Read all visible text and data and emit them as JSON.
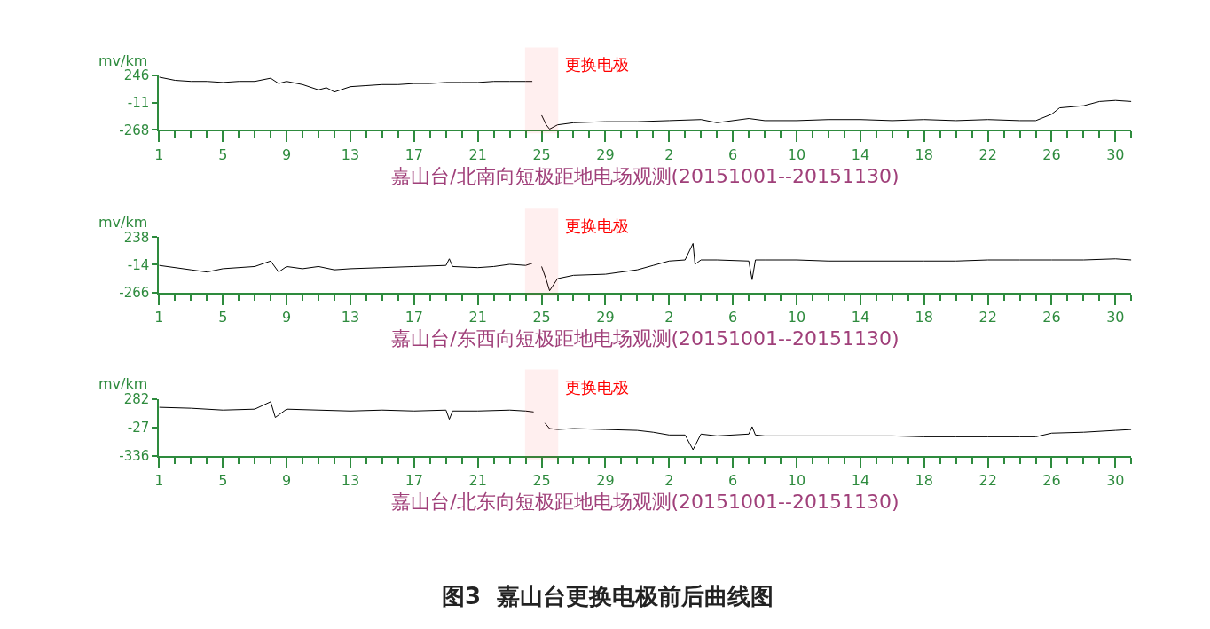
{
  "chart_data": [
    {
      "type": "line",
      "ylabel": "mv/km",
      "xlabel": "嘉山台/北南向短极距地电场观测(20151001--20151130)",
      "x": [
        "2015-10-01",
        "2015-10-02",
        "2015-10-03",
        "2015-10-04",
        "2015-10-05",
        "2015-10-06",
        "2015-10-07",
        "2015-10-08",
        "2015-10-08T12:00",
        "2015-10-09",
        "2015-10-10",
        "2015-10-11",
        "2015-10-11T12:00",
        "2015-10-12",
        "2015-10-13",
        "2015-10-14",
        "2015-10-15",
        "2015-10-16",
        "2015-10-17",
        "2015-10-18",
        "2015-10-19",
        "2015-10-20",
        "2015-10-21",
        "2015-10-22",
        "2015-10-23",
        "2015-10-24",
        "2015-10-24T10:00",
        "2015-10-24T17:00",
        "2015-10-25",
        "2015-10-25T07:00",
        "2015-10-25T12:00",
        "2015-10-26",
        "2015-10-27",
        "2015-10-29",
        "2015-10-31",
        "2015-11-02",
        "2015-11-04",
        "2015-11-05",
        "2015-11-07",
        "2015-11-08",
        "2015-11-10",
        "2015-11-12",
        "2015-11-14",
        "2015-11-16",
        "2015-11-18",
        "2015-11-20",
        "2015-11-22",
        "2015-11-24",
        "2015-11-25",
        "2015-11-26",
        "2015-11-26T12:00",
        "2015-11-28",
        "2015-11-29",
        "2015-11-30",
        "2015-12-01"
      ],
      "series": [
        {
          "color": "#000000",
          "values": [
            230,
            200,
            190,
            190,
            180,
            190,
            190,
            220,
            170,
            190,
            160,
            110,
            130,
            90,
            140,
            150,
            160,
            160,
            170,
            170,
            180,
            180,
            180,
            190,
            190,
            190,
            190,
            null,
            -130,
            -220,
            -260,
            -220,
            -200,
            -190,
            -190,
            -180,
            -170,
            -200,
            -160,
            -180,
            -180,
            -170,
            -170,
            -180,
            -170,
            -180,
            -170,
            -180,
            -180,
            -120,
            -60,
            -40,
            0,
            10,
            0
          ]
        }
      ],
      "xlim": [
        "2015-10-01",
        "2015-12-01"
      ],
      "xticks": [
        {
          "value": "2015-10-01",
          "label": "1"
        },
        {
          "value": "2015-10-05",
          "label": "5"
        },
        {
          "value": "2015-10-09",
          "label": "9"
        },
        {
          "value": "2015-10-13",
          "label": "13"
        },
        {
          "value": "2015-10-17",
          "label": "17"
        },
        {
          "value": "2015-10-21",
          "label": "21"
        },
        {
          "value": "2015-10-25",
          "label": "25"
        },
        {
          "value": "2015-10-29",
          "label": "29"
        },
        {
          "value": "2015-11-02",
          "label": "2"
        },
        {
          "value": "2015-11-06",
          "label": "6"
        },
        {
          "value": "2015-11-10",
          "label": "10"
        },
        {
          "value": "2015-11-14",
          "label": "14"
        },
        {
          "value": "2015-11-18",
          "label": "18"
        },
        {
          "value": "2015-11-22",
          "label": "22"
        },
        {
          "value": "2015-11-26",
          "label": "26"
        },
        {
          "value": "2015-11-30",
          "label": "30"
        }
      ],
      "ylim": [
        -268,
        246
      ],
      "yticks": [
        -268,
        -11,
        246
      ],
      "bands": [
        {
          "axis": "x",
          "from": "2015-10-24",
          "to": "2015-10-26",
          "label": "更换电极",
          "color": "#ff0000"
        }
      ],
      "marker": "none",
      "line_style": "solid"
    },
    {
      "type": "line",
      "ylabel": "mv/km",
      "xlabel": "嘉山台/东西向短极距地电场观测(20151001--20151130)",
      "x": [
        "2015-10-01",
        "2015-10-03",
        "2015-10-04",
        "2015-10-05",
        "2015-10-07",
        "2015-10-08",
        "2015-10-08T12:00",
        "2015-10-09",
        "2015-10-10",
        "2015-10-11",
        "2015-10-12",
        "2015-10-13",
        "2015-10-15",
        "2015-10-17",
        "2015-10-19",
        "2015-10-19T05:00",
        "2015-10-19T10:00",
        "2015-10-21",
        "2015-10-22",
        "2015-10-23",
        "2015-10-24",
        "2015-10-24T10:00",
        "2015-10-24T17:00",
        "2015-10-25",
        "2015-10-25T07:00",
        "2015-10-25T12:00",
        "2015-10-26",
        "2015-10-27",
        "2015-10-29",
        "2015-10-31",
        "2015-11-01",
        "2015-11-02",
        "2015-11-03",
        "2015-11-03T12:00",
        "2015-11-03T15:00",
        "2015-11-04",
        "2015-11-05",
        "2015-11-07",
        "2015-11-07T05:00",
        "2015-11-07T10:00",
        "2015-11-08",
        "2015-11-10",
        "2015-11-12",
        "2015-11-14",
        "2015-11-16",
        "2015-11-18",
        "2015-11-20",
        "2015-11-22",
        "2015-11-24",
        "2015-11-26",
        "2015-11-28",
        "2015-11-30",
        "2015-12-01"
      ],
      "series": [
        {
          "color": "#000000",
          "values": [
            -20,
            -60,
            -80,
            -50,
            -30,
            20,
            -80,
            -30,
            -50,
            -30,
            -60,
            -50,
            -40,
            -30,
            -20,
            40,
            -30,
            -40,
            -30,
            -10,
            -20,
            0,
            null,
            -30,
            -150,
            -250,
            -140,
            -110,
            -100,
            -60,
            -20,
            20,
            30,
            180,
            -10,
            30,
            30,
            20,
            -150,
            30,
            30,
            30,
            20,
            20,
            20,
            20,
            20,
            30,
            30,
            30,
            30,
            40,
            30
          ]
        }
      ],
      "xlim": [
        "2015-10-01",
        "2015-12-01"
      ],
      "xticks": [
        {
          "value": "2015-10-01",
          "label": "1"
        },
        {
          "value": "2015-10-05",
          "label": "5"
        },
        {
          "value": "2015-10-09",
          "label": "9"
        },
        {
          "value": "2015-10-13",
          "label": "13"
        },
        {
          "value": "2015-10-17",
          "label": "17"
        },
        {
          "value": "2015-10-21",
          "label": "21"
        },
        {
          "value": "2015-10-25",
          "label": "25"
        },
        {
          "value": "2015-10-29",
          "label": "29"
        },
        {
          "value": "2015-11-02",
          "label": "2"
        },
        {
          "value": "2015-11-06",
          "label": "6"
        },
        {
          "value": "2015-11-10",
          "label": "10"
        },
        {
          "value": "2015-11-14",
          "label": "14"
        },
        {
          "value": "2015-11-18",
          "label": "18"
        },
        {
          "value": "2015-11-22",
          "label": "22"
        },
        {
          "value": "2015-11-26",
          "label": "26"
        },
        {
          "value": "2015-11-30",
          "label": "30"
        }
      ],
      "ylim": [
        -266,
        238
      ],
      "yticks": [
        -266,
        -14,
        238
      ],
      "bands": [
        {
          "axis": "x",
          "from": "2015-10-24",
          "to": "2015-10-26",
          "label": "更换电极",
          "color": "#ff0000"
        }
      ],
      "marker": "none",
      "line_style": "solid"
    },
    {
      "type": "line",
      "ylabel": "mv/km",
      "xlabel": "嘉山台/北东向短极距地电场观测(20151001--20151130)",
      "x": [
        "2015-10-01",
        "2015-10-03",
        "2015-10-05",
        "2015-10-07",
        "2015-10-08",
        "2015-10-08T07:00",
        "2015-10-09",
        "2015-10-11",
        "2015-10-13",
        "2015-10-15",
        "2015-10-17",
        "2015-10-19",
        "2015-10-19T05:00",
        "2015-10-19T10:00",
        "2015-10-21",
        "2015-10-23",
        "2015-10-24",
        "2015-10-24T12:00",
        "2015-10-24T20:00",
        "2015-10-25T05:00",
        "2015-10-25T12:00",
        "2015-10-26",
        "2015-10-27",
        "2015-10-29",
        "2015-10-31",
        "2015-11-01",
        "2015-11-02",
        "2015-11-03",
        "2015-11-03T12:00",
        "2015-11-04",
        "2015-11-05",
        "2015-11-07",
        "2015-11-07T05:00",
        "2015-11-07T10:00",
        "2015-11-08",
        "2015-11-10",
        "2015-11-12",
        "2015-11-14",
        "2015-11-16",
        "2015-11-18",
        "2015-11-20",
        "2015-11-22",
        "2015-11-24",
        "2015-11-25",
        "2015-11-26",
        "2015-11-28",
        "2015-11-30",
        "2015-12-01"
      ],
      "series": [
        {
          "color": "#000000",
          "values": [
            190,
            180,
            160,
            170,
            250,
            80,
            170,
            160,
            150,
            160,
            150,
            160,
            60,
            150,
            150,
            160,
            150,
            140,
            null,
            20,
            -40,
            -50,
            -40,
            -50,
            -60,
            -80,
            -110,
            -110,
            -270,
            -100,
            -120,
            -100,
            -20,
            -110,
            -120,
            -120,
            -120,
            -120,
            -120,
            -130,
            -130,
            -130,
            -130,
            -130,
            -90,
            -80,
            -60,
            -50
          ]
        }
      ],
      "xlim": [
        "2015-10-01",
        "2015-12-01"
      ],
      "xticks": [
        {
          "value": "2015-10-01",
          "label": "1"
        },
        {
          "value": "2015-10-05",
          "label": "5"
        },
        {
          "value": "2015-10-09",
          "label": "9"
        },
        {
          "value": "2015-10-13",
          "label": "13"
        },
        {
          "value": "2015-10-17",
          "label": "17"
        },
        {
          "value": "2015-10-21",
          "label": "21"
        },
        {
          "value": "2015-10-25",
          "label": "25"
        },
        {
          "value": "2015-10-29",
          "label": "29"
        },
        {
          "value": "2015-11-02",
          "label": "2"
        },
        {
          "value": "2015-11-06",
          "label": "6"
        },
        {
          "value": "2015-11-10",
          "label": "10"
        },
        {
          "value": "2015-11-14",
          "label": "14"
        },
        {
          "value": "2015-11-18",
          "label": "18"
        },
        {
          "value": "2015-11-22",
          "label": "22"
        },
        {
          "value": "2015-11-26",
          "label": "26"
        },
        {
          "value": "2015-11-30",
          "label": "30"
        }
      ],
      "ylim": [
        -336,
        282
      ],
      "yticks": [
        -336,
        -27,
        282
      ],
      "bands": [
        {
          "axis": "x",
          "from": "2015-10-24",
          "to": "2015-10-26",
          "label": "更换电极",
          "color": "#ff0000"
        }
      ],
      "annotations": [
        "图3  嘉山台更换电极前后曲线图"
      ],
      "marker": "none",
      "line_style": "solid"
    }
  ]
}
